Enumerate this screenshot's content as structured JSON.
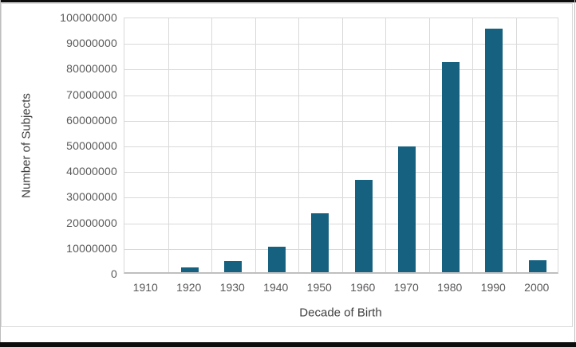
{
  "frame": {
    "background": "#ffffff",
    "outer_border_color": "#0d0d0d",
    "chart_border_color": "#d9d9d9"
  },
  "chart_data": {
    "type": "bar",
    "title": "",
    "xlabel": "Decade of Birth",
    "ylabel": "Number of Subjects",
    "categories": [
      "1910",
      "1920",
      "1930",
      "1940",
      "1950",
      "1960",
      "1970",
      "1980",
      "1990",
      "2000"
    ],
    "values": [
      0,
      1800000,
      4300000,
      9900000,
      23000000,
      36000000,
      49000000,
      82000000,
      95000000,
      4600000
    ],
    "ylim": [
      0,
      100000000
    ],
    "y_tick_interval": 10000000,
    "y_tick_labels": [
      "0",
      "10000000",
      "20000000",
      "30000000",
      "40000000",
      "50000000",
      "60000000",
      "70000000",
      "80000000",
      "90000000",
      "100000000"
    ],
    "gridlines": {
      "horizontal": true,
      "vertical": true,
      "color": "#d9d9d9"
    },
    "legend": "none",
    "bar_color": "#16617f",
    "axis_line_color": "#bfbfbf",
    "tick_label_color": "#595959",
    "axis_title_color": "#404040"
  }
}
